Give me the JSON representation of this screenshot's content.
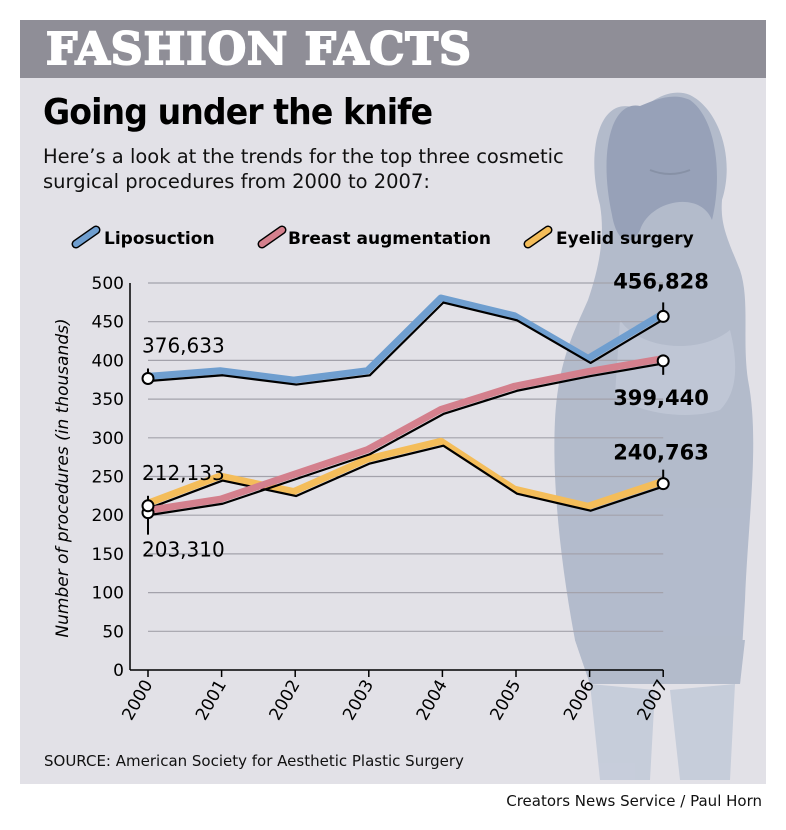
{
  "banner": "FASHION FACTS",
  "headline": "Going under the knife",
  "subhead": "Here’s a look at the trends for the top three cosmetic surgical procedures from 2000 to 2007:",
  "source": "SOURCE: American Society for Aesthetic Plastic Surgery",
  "credit": "Creators News Service / Paul Horn",
  "colors": {
    "panel": "#e2e1e7",
    "banner": "#8f8e97",
    "liposuction": "#6f9ecf",
    "breast_augmentation": "#d4808d",
    "eyelid_surgery": "#f4bd5a"
  },
  "chart_data": {
    "type": "line",
    "title": "Going under the knife",
    "xlabel": "",
    "ylabel": "Number of procedures (in thousands)",
    "x": [
      "2000",
      "2001",
      "2002",
      "2003",
      "2004",
      "2005",
      "2006",
      "2007"
    ],
    "ylim": [
      0,
      500
    ],
    "yticks": [
      "0",
      "50",
      "100",
      "150",
      "200",
      "250",
      "300",
      "350",
      "400",
      "450",
      "500"
    ],
    "grid": true,
    "legend_position": "top",
    "series": [
      {
        "name": "Liposuction",
        "values": [
          376.633,
          384,
          372,
          384,
          478,
          455,
          400,
          456.828
        ]
      },
      {
        "name": "Breast augmentation",
        "values": [
          203.31,
          218,
          250,
          282,
          334,
          364,
          383,
          399.44
        ]
      },
      {
        "name": "Eyelid surgery",
        "values": [
          212.133,
          248,
          228,
          270,
          293,
          231,
          209,
          240.763
        ]
      }
    ],
    "annotations": [
      {
        "text": "376,633",
        "series": "Liposuction",
        "x": "2000"
      },
      {
        "text": "456,828",
        "series": "Liposuction",
        "x": "2007"
      },
      {
        "text": "203,310",
        "series": "Breast augmentation",
        "x": "2000"
      },
      {
        "text": "399,440",
        "series": "Breast augmentation",
        "x": "2007"
      },
      {
        "text": "212,133",
        "series": "Eyelid surgery",
        "x": "2000"
      },
      {
        "text": "240,763",
        "series": "Eyelid surgery",
        "x": "2007"
      }
    ]
  }
}
